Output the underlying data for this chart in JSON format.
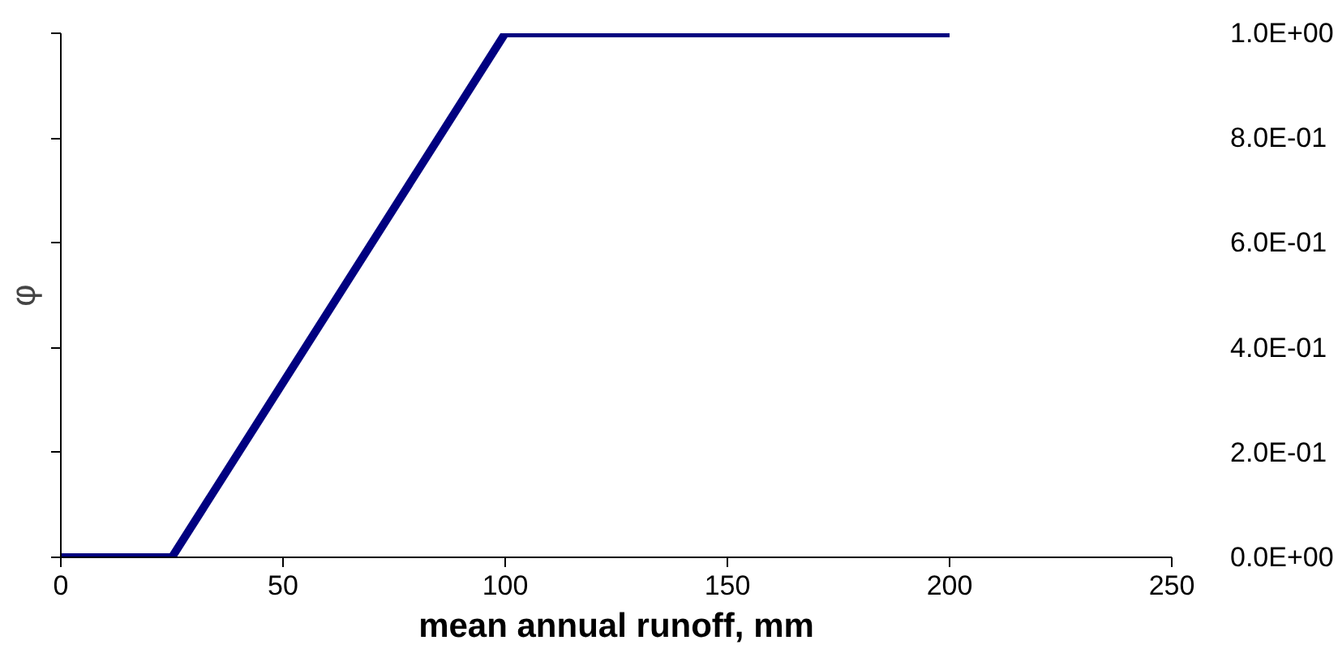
{
  "chart_data": {
    "type": "line",
    "xlabel": "mean annual runoff, mm",
    "ylabel": "φ",
    "x": [
      0,
      25,
      100,
      200
    ],
    "series": [
      {
        "color": "#000080",
        "values": [
          0,
          0,
          1,
          1
        ]
      }
    ],
    "xlim": [
      0,
      250
    ],
    "xticks": [
      0,
      50,
      100,
      150,
      200,
      250
    ],
    "ylim": [
      0,
      1
    ],
    "yticks": [
      {
        "value": 0,
        "label": "0.0E+00"
      },
      {
        "value": 0.2,
        "label": "2.0E-01"
      },
      {
        "value": 0.4,
        "label": "4.0E-01"
      },
      {
        "value": 0.6,
        "label": "6.0E-01"
      },
      {
        "value": 0.8,
        "label": "8.0E-01"
      },
      {
        "value": 1,
        "label": "1.0E+00"
      }
    ],
    "grid": false,
    "marker": "none",
    "line_style": "solid"
  }
}
